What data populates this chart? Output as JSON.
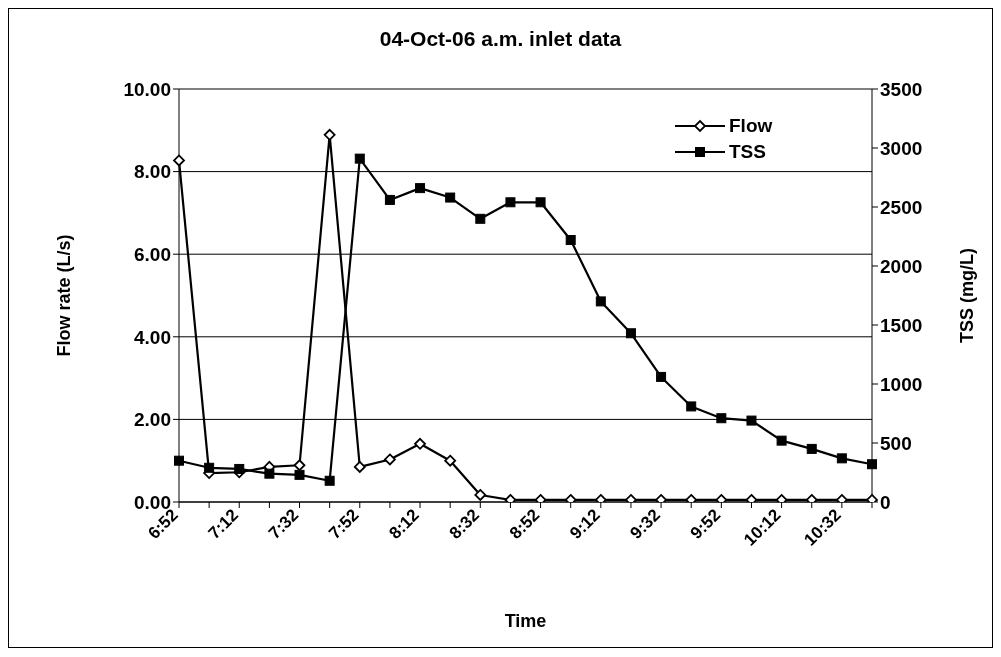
{
  "chart_data": {
    "type": "line",
    "title": "04-Oct-06 a.m. inlet data",
    "xlabel": "Time",
    "ylabel": "Flow rate (L/s)",
    "y2label": "TSS (mg/L)",
    "categories": [
      "6:52",
      null,
      "7:12",
      null,
      "7:32",
      null,
      "7:52",
      null,
      "8:12",
      null,
      "8:32",
      null,
      "8:52",
      null,
      "9:12",
      null,
      "9:32",
      null,
      "9:52",
      null,
      "10:12",
      null,
      "10:32",
      null
    ],
    "series": [
      {
        "name": "Flow",
        "color": "#000000",
        "marker": "diamond",
        "values": [
          8.27,
          0.7,
          0.72,
          0.85,
          0.89,
          8.89,
          0.85,
          1.03,
          1.41,
          1.0,
          0.17,
          0.05,
          0.05,
          0.05,
          0.05,
          0.05,
          0.05,
          0.05,
          0.05,
          0.05,
          0.05,
          0.05,
          0.05,
          0.05
        ]
      },
      {
        "name": "TSS",
        "color": "#000000",
        "marker": "square",
        "axis": "y2",
        "values": [
          350,
          290,
          280,
          240,
          230,
          180,
          2910,
          2560,
          2660,
          2580,
          2400,
          2540,
          2540,
          2220,
          1700,
          1430,
          1060,
          810,
          710,
          690,
          520,
          450,
          370,
          320
        ]
      }
    ],
    "ylim": [
      0,
      10
    ],
    "yticks": [
      {
        "value": 0,
        "label": "0.00"
      },
      {
        "value": 2,
        "label": "2.00"
      },
      {
        "value": 4,
        "label": "4.00"
      },
      {
        "value": 6,
        "label": "6.00"
      },
      {
        "value": 8,
        "label": "8.00"
      },
      {
        "value": 10,
        "label": "10.00"
      }
    ],
    "y2lim": [
      0,
      3500
    ],
    "y2ticks": [
      0,
      500,
      1000,
      1500,
      2000,
      2500,
      3000,
      3500
    ],
    "grid": "y",
    "legend": "top right"
  }
}
